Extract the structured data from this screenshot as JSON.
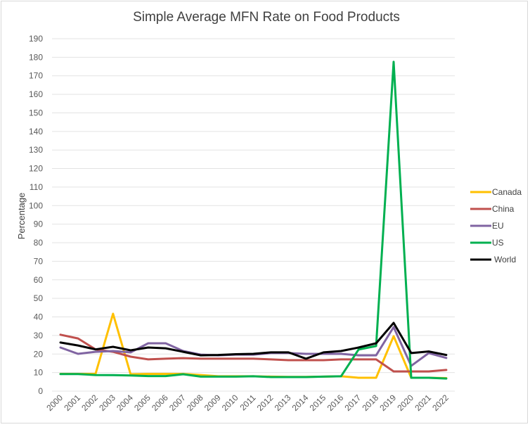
{
  "chart_data": {
    "type": "line",
    "title": "Simple Average MFN Rate on Food Products",
    "xlabel": "",
    "ylabel": "Percentage",
    "ylim": [
      0,
      190
    ],
    "ytick_step": 10,
    "yticks": [
      "0",
      "10",
      "20",
      "30",
      "40",
      "50",
      "60",
      "70",
      "80",
      "90",
      "100",
      "110",
      "120",
      "130",
      "140",
      "150",
      "160",
      "170",
      "180",
      "190"
    ],
    "grid": true,
    "legend_position": "right",
    "categories": [
      "2000",
      "2001",
      "2002",
      "2003",
      "2004",
      "2005",
      "2006",
      "2007",
      "2008",
      "2009",
      "2010",
      "2011",
      "2012",
      "2013",
      "2014",
      "2015",
      "2016",
      "2017",
      "2018",
      "2019",
      "2020",
      "2021",
      "2022"
    ],
    "series": [
      {
        "name": "Canada",
        "color": "#ffc000",
        "values": [
          9.3,
          9.3,
          9.3,
          41.7,
          9.1,
          9.3,
          9.3,
          9.3,
          8.7,
          8.0,
          8.0,
          8.0,
          7.8,
          7.7,
          7.7,
          7.8,
          8.0,
          7.2,
          7.2,
          29.6,
          7.2,
          7.2,
          7.0
        ]
      },
      {
        "name": "China",
        "color": "#c0504d",
        "values": [
          30.4,
          28.4,
          22.5,
          21.2,
          18.6,
          17.1,
          17.5,
          17.8,
          17.5,
          17.5,
          17.5,
          17.5,
          17.1,
          16.7,
          16.7,
          16.7,
          17.1,
          17.1,
          17.1,
          10.6,
          10.6,
          10.6,
          11.4
        ]
      },
      {
        "name": "EU",
        "color": "#8064a2",
        "values": [
          23.5,
          20.1,
          21.2,
          21.6,
          20.9,
          25.8,
          25.8,
          21.6,
          19.7,
          19.3,
          19.7,
          19.7,
          20.5,
          20.5,
          20.1,
          20.1,
          20.1,
          19.3,
          19.3,
          34.5,
          13.6,
          20.5,
          17.9
        ]
      },
      {
        "name": "US",
        "color": "#00b050",
        "values": [
          9.2,
          9.2,
          8.7,
          8.6,
          8.4,
          8.1,
          8.1,
          9.1,
          7.8,
          7.8,
          7.8,
          8.0,
          7.6,
          7.6,
          7.6,
          7.8,
          8.0,
          22.4,
          24.3,
          177.5,
          7.2,
          7.2,
          6.8
        ]
      },
      {
        "name": "World",
        "color": "#000000",
        "values": [
          26.2,
          24.6,
          22.5,
          23.9,
          22.0,
          23.5,
          23.1,
          21.2,
          19.3,
          19.5,
          19.9,
          20.1,
          20.9,
          20.9,
          17.5,
          20.9,
          21.6,
          23.5,
          25.8,
          36.8,
          20.5,
          21.4,
          19.5
        ]
      }
    ]
  }
}
